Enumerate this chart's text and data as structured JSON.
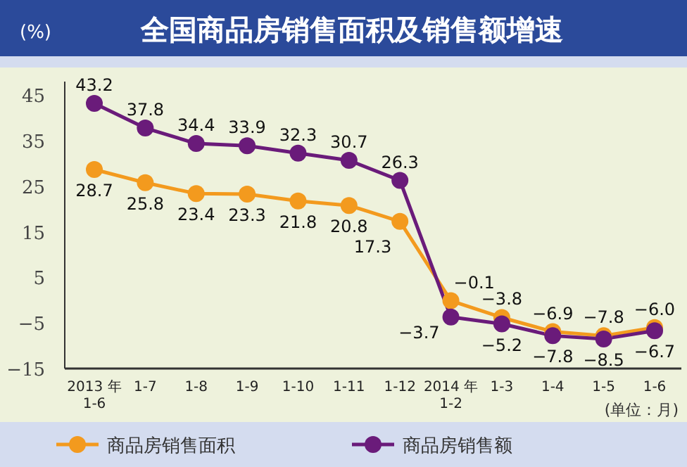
{
  "chart_data": {
    "type": "line",
    "title": "全国商品房销售面积及销售额增速",
    "ylabel": "(%)",
    "xlabel": "(单位：月)",
    "categories": [
      "2013 年\n1-6",
      "1-7",
      "1-8",
      "1-9",
      "1-10",
      "1-11",
      "1-12",
      "2014 年\n1-2",
      "1-3",
      "1-4",
      "1-5",
      "1-6"
    ],
    "series": [
      {
        "name": "商品房销售面积",
        "color": "#f39a1e",
        "values": [
          28.7,
          25.8,
          23.4,
          23.3,
          21.8,
          20.8,
          17.3,
          -0.1,
          -3.8,
          -6.9,
          -7.8,
          -6.0
        ],
        "value_labels": [
          "28.7",
          "25.8",
          "23.4",
          "23.3",
          "21.8",
          "20.8",
          "17.3",
          "−0.1",
          "−3.8",
          "−6.9",
          "−7.8",
          "−6.0"
        ]
      },
      {
        "name": "商品房销售额",
        "color": "#6a1b7a",
        "values": [
          43.2,
          37.8,
          34.4,
          33.9,
          32.3,
          30.7,
          26.3,
          -3.7,
          -5.2,
          -7.8,
          -8.5,
          -6.7
        ],
        "value_labels": [
          "43.2",
          "37.8",
          "34.4",
          "33.9",
          "32.3",
          "30.7",
          "26.3",
          "−3.7",
          "−5.2",
          "−7.8",
          "−8.5",
          "−6.7"
        ]
      }
    ],
    "ylim": [
      -15,
      48
    ],
    "yticks": [
      45,
      35,
      25,
      15,
      5,
      -5,
      -15
    ],
    "legend": "bottom",
    "marker": "circle",
    "line_style": "solid"
  }
}
